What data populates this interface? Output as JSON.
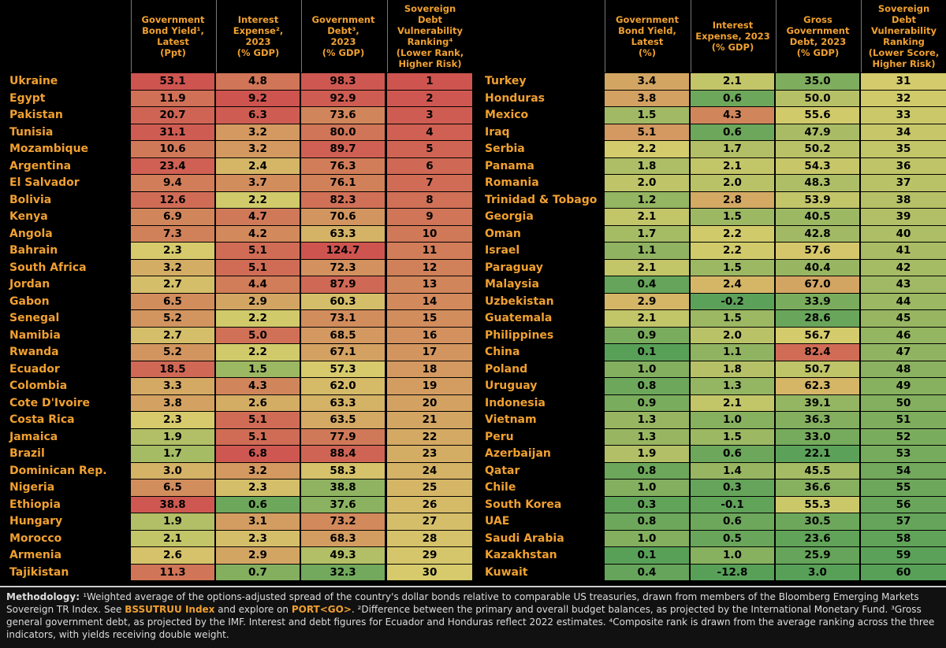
{
  "left_table": {
    "headers": [
      [
        "Government",
        "Bond Yield¹,",
        "Latest",
        "(Ppt)"
      ],
      [
        "Interest",
        "Expense²,",
        "2023",
        "(% GDP)"
      ],
      [
        "Government",
        "Debt³,",
        "2023",
        "(% GDP)"
      ],
      [
        "Sovereign",
        "Debt",
        "Vulnerability",
        "Ranking⁴",
        "(Lower Rank,",
        "Higher Risk)"
      ]
    ],
    "rows": [
      [
        "Ukraine",
        "53.1",
        "4.8",
        "98.3",
        "1"
      ],
      [
        "Egypt",
        "11.9",
        "9.2",
        "92.9",
        "2"
      ],
      [
        "Pakistan",
        "20.7",
        "6.3",
        "73.6",
        "3"
      ],
      [
        "Tunisia",
        "31.1",
        "3.2",
        "80.0",
        "4"
      ],
      [
        "Mozambique",
        "10.6",
        "3.2",
        "89.7",
        "5"
      ],
      [
        "Argentina",
        "23.4",
        "2.4",
        "76.3",
        "6"
      ],
      [
        "El Salvador",
        "9.4",
        "3.7",
        "76.1",
        "7"
      ],
      [
        "Bolivia",
        "12.6",
        "2.2",
        "82.3",
        "8"
      ],
      [
        "Kenya",
        "6.9",
        "4.7",
        "70.6",
        "9"
      ],
      [
        "Angola",
        "7.3",
        "4.2",
        "63.3",
        "10"
      ],
      [
        "Bahrain",
        "2.3",
        "5.1",
        "124.7",
        "11"
      ],
      [
        "South Africa",
        "3.2",
        "5.1",
        "72.3",
        "12"
      ],
      [
        "Jordan",
        "2.7",
        "4.4",
        "87.9",
        "13"
      ],
      [
        "Gabon",
        "6.5",
        "2.9",
        "60.3",
        "14"
      ],
      [
        "Senegal",
        "5.2",
        "2.2",
        "73.1",
        "15"
      ],
      [
        "Namibia",
        "2.7",
        "5.0",
        "68.5",
        "16"
      ],
      [
        "Rwanda",
        "5.2",
        "2.2",
        "67.1",
        "17"
      ],
      [
        "Ecuador",
        "18.5",
        "1.5",
        "57.3",
        "18"
      ],
      [
        "Colombia",
        "3.3",
        "4.3",
        "62.0",
        "19"
      ],
      [
        "Cote D'Ivoire",
        "3.8",
        "2.6",
        "63.3",
        "20"
      ],
      [
        "Costa Rica",
        "2.3",
        "5.1",
        "63.5",
        "21"
      ],
      [
        "Jamaica",
        "1.9",
        "5.1",
        "77.9",
        "22"
      ],
      [
        "Brazil",
        "1.7",
        "6.8",
        "88.4",
        "23"
      ],
      [
        "Dominican Rep.",
        "3.0",
        "3.2",
        "58.3",
        "24"
      ],
      [
        "Nigeria",
        "6.5",
        "2.3",
        "38.8",
        "25"
      ],
      [
        "Ethiopia",
        "38.8",
        "0.6",
        "37.6",
        "26"
      ],
      [
        "Hungary",
        "1.9",
        "3.1",
        "73.2",
        "27"
      ],
      [
        "Morocco",
        "2.1",
        "2.3",
        "68.3",
        "28"
      ],
      [
        "Armenia",
        "2.6",
        "2.9",
        "49.3",
        "29"
      ],
      [
        "Tajikistan",
        "11.3",
        "0.7",
        "32.3",
        "30"
      ]
    ]
  },
  "right_table": {
    "headers": [
      [
        "Government",
        "Bond Yield,",
        "Latest",
        "(%)"
      ],
      [
        "Interest",
        "Expense, 2023",
        "(% GDP)"
      ],
      [
        "Gross",
        "Government",
        "Debt, 2023",
        "(% GDP)"
      ],
      [
        "Sovereign",
        "Debt",
        "Vulnerability",
        "Ranking",
        "(Lower Score,",
        "Higher Risk)"
      ]
    ],
    "rows": [
      [
        "Turkey",
        "3.4",
        "2.1",
        "35.0",
        "31"
      ],
      [
        "Honduras",
        "3.8",
        "0.6",
        "50.0",
        "32"
      ],
      [
        "Mexico",
        "1.5",
        "4.3",
        "55.6",
        "33"
      ],
      [
        "Iraq",
        "5.1",
        "0.6",
        "47.9",
        "34"
      ],
      [
        "Serbia",
        "2.2",
        "1.7",
        "50.2",
        "35"
      ],
      [
        "Panama",
        "1.8",
        "2.1",
        "54.3",
        "36"
      ],
      [
        "Romania",
        "2.0",
        "2.0",
        "48.3",
        "37"
      ],
      [
        "Trinidad & Tobago",
        "1.2",
        "2.8",
        "53.9",
        "38"
      ],
      [
        "Georgia",
        "2.1",
        "1.5",
        "40.5",
        "39"
      ],
      [
        "Oman",
        "1.7",
        "2.2",
        "42.8",
        "40"
      ],
      [
        "Israel",
        "1.1",
        "2.2",
        "57.6",
        "41"
      ],
      [
        "Paraguay",
        "2.1",
        "1.5",
        "40.4",
        "42"
      ],
      [
        "Malaysia",
        "0.4",
        "2.4",
        "67.0",
        "43"
      ],
      [
        "Uzbekistan",
        "2.9",
        "-0.2",
        "33.9",
        "44"
      ],
      [
        "Guatemala",
        "2.1",
        "1.5",
        "28.6",
        "45"
      ],
      [
        "Philippines",
        "0.9",
        "2.0",
        "56.7",
        "46"
      ],
      [
        "China",
        "0.1",
        "1.1",
        "82.4",
        "47"
      ],
      [
        "Poland",
        "1.0",
        "1.8",
        "50.7",
        "48"
      ],
      [
        "Uruguay",
        "0.8",
        "1.3",
        "62.3",
        "49"
      ],
      [
        "Indonesia",
        "0.9",
        "2.1",
        "39.1",
        "50"
      ],
      [
        "Vietnam",
        "1.3",
        "1.0",
        "36.3",
        "51"
      ],
      [
        "Peru",
        "1.3",
        "1.5",
        "33.0",
        "52"
      ],
      [
        "Azerbaijan",
        "1.9",
        "0.6",
        "22.1",
        "53"
      ],
      [
        "Qatar",
        "0.8",
        "1.4",
        "45.5",
        "54"
      ],
      [
        "Chile",
        "1.0",
        "0.3",
        "36.6",
        "55"
      ],
      [
        "South Korea",
        "0.3",
        "-0.1",
        "55.3",
        "56"
      ],
      [
        "UAE",
        "0.8",
        "0.6",
        "30.5",
        "57"
      ],
      [
        "Saudi Arabia",
        "1.0",
        "0.5",
        "23.6",
        "58"
      ],
      [
        "Kazakhstan",
        "0.1",
        "1.0",
        "25.9",
        "59"
      ],
      [
        "Kuwait",
        "0.4",
        "-12.8",
        "3.0",
        "60"
      ]
    ]
  },
  "footnote": [
    {
      "text": "Methodology: ",
      "style": "bold"
    },
    {
      "text": "¹Weighted average of the options-adjusted spread of the country's dollar bonds relative to comparable US treasuries, drawn from members of the Bloomberg Emerging Markets Sovereign TR Index. See ",
      "style": "plain"
    },
    {
      "text": "BSSUTRUU Index",
      "style": "link"
    },
    {
      "text": " and explore on ",
      "style": "plain"
    },
    {
      "text": "PORT<GO>",
      "style": "link"
    },
    {
      "text": ". ²Difference between the primary and overall budget balances, as projected by the International Monetary Fund. ³Gross general government debt, as projected by the IMF. Interest and debt figures for Ecuador and Honduras reflect 2022 estimates. ⁴Composite rank is drawn from the average ranking across the three indicators, with yields receiving double weight.",
      "style": "plain"
    }
  ]
}
